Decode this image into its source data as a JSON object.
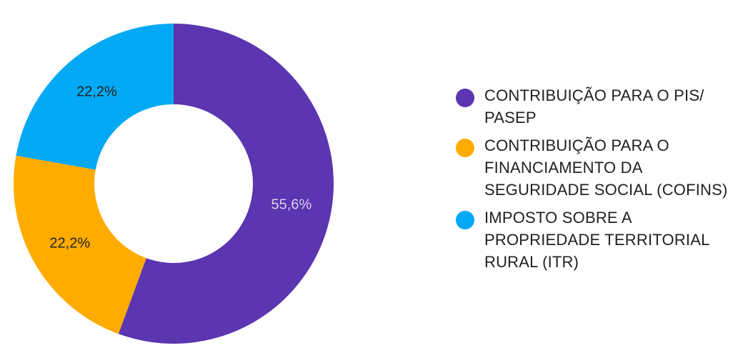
{
  "chart_data": {
    "type": "pie",
    "donut": true,
    "title": "",
    "legend_position": "right",
    "labels": [
      "CONTRIBUIÇÃO PARA O PIS/ PASEP",
      "CONTRIBUIÇÃO PARA O FINANCIAMENTO DA SEGURIDADE SOCIAL (COFINS)",
      "IMPOSTO SOBRE A PROPRIEDADE TERRITORIAL RURAL (ITR)"
    ],
    "values": [
      55.6,
      22.2,
      22.2
    ],
    "value_labels": [
      "55,6%",
      "22,2%",
      "22,2%"
    ],
    "colors": [
      "#5c35b0",
      "#ffab00",
      "#03a9f4"
    ],
    "label_colors": [
      "#d6cfee",
      "#212121",
      "#212121"
    ]
  },
  "legend": {
    "items": [
      {
        "label": "CONTRIBUIÇÃO PARA O PIS/ PASEP",
        "color": "#5c35b0"
      },
      {
        "label": "CONTRIBUIÇÃO PARA O FINANCIAMENTO DA SEGURIDADE SOCIAL (COFINS)",
        "color": "#ffab00"
      },
      {
        "label": "IMPOSTO SOBRE A PROPRIEDADE TERRITORIAL RURAL (ITR)",
        "color": "#03a9f4"
      }
    ]
  }
}
